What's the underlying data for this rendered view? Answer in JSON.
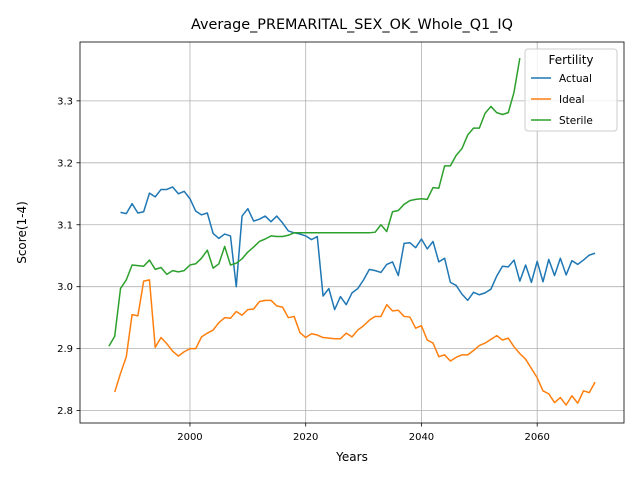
{
  "chart_data": {
    "type": "line",
    "title": "Average_PREMARITAL_SEX_OK_Whole_Q1_IQ",
    "xlabel": "Years",
    "ylabel": "Score(1-4)",
    "xlim": [
      1981,
      2075
    ],
    "ylim": [
      2.78,
      3.395
    ],
    "xticks": [
      2000,
      2020,
      2040,
      2060
    ],
    "yticks": [
      2.8,
      2.9,
      3.0,
      3.1,
      3.2,
      3.3
    ],
    "ytick_labels": [
      "2.8",
      "2.9",
      "3.0",
      "3.1",
      "3.2",
      "3.3"
    ],
    "grid": true,
    "legend": {
      "title": "Fertility",
      "position": "top-right"
    },
    "series": [
      {
        "name": "Actual",
        "color": "#1f77b4",
        "points": [
          [
            1988,
            3.12
          ],
          [
            1989,
            3.118
          ],
          [
            1990,
            3.134
          ],
          [
            1991,
            3.119
          ],
          [
            1992,
            3.121
          ],
          [
            1993,
            3.151
          ],
          [
            1994,
            3.145
          ],
          [
            1995,
            3.157
          ],
          [
            1996,
            3.157
          ],
          [
            1997,
            3.161
          ],
          [
            1998,
            3.15
          ],
          [
            1999,
            3.154
          ],
          [
            2000,
            3.142
          ],
          [
            2001,
            3.122
          ],
          [
            2002,
            3.116
          ],
          [
            2003,
            3.119
          ],
          [
            2004,
            3.086
          ],
          [
            2005,
            3.078
          ],
          [
            2006,
            3.085
          ],
          [
            2007,
            3.082
          ],
          [
            2008,
            3.0
          ],
          [
            2009,
            3.114
          ],
          [
            2010,
            3.126
          ],
          [
            2011,
            3.106
          ],
          [
            2012,
            3.109
          ],
          [
            2013,
            3.114
          ],
          [
            2014,
            3.105
          ],
          [
            2015,
            3.114
          ],
          [
            2016,
            3.103
          ],
          [
            2017,
            3.09
          ],
          [
            2018,
            3.087
          ],
          [
            2019,
            3.085
          ],
          [
            2020,
            3.082
          ],
          [
            2021,
            3.076
          ],
          [
            2022,
            3.081
          ],
          [
            2023,
            2.985
          ],
          [
            2024,
            2.997
          ],
          [
            2025,
            2.963
          ],
          [
            2026,
            2.984
          ],
          [
            2027,
            2.971
          ],
          [
            2028,
            2.99
          ],
          [
            2029,
            2.997
          ],
          [
            2030,
            3.011
          ],
          [
            2031,
            3.028
          ],
          [
            2032,
            3.026
          ],
          [
            2033,
            3.023
          ],
          [
            2034,
            3.036
          ],
          [
            2035,
            3.04
          ],
          [
            2036,
            3.018
          ],
          [
            2037,
            3.07
          ],
          [
            2038,
            3.071
          ],
          [
            2039,
            3.063
          ],
          [
            2040,
            3.077
          ],
          [
            2041,
            3.061
          ],
          [
            2042,
            3.073
          ],
          [
            2043,
            3.04
          ],
          [
            2044,
            3.046
          ],
          [
            2045,
            3.007
          ],
          [
            2046,
            3.002
          ],
          [
            2047,
            2.988
          ],
          [
            2048,
            2.978
          ],
          [
            2049,
            2.991
          ],
          [
            2050,
            2.987
          ],
          [
            2051,
            2.99
          ],
          [
            2052,
            2.996
          ],
          [
            2053,
            3.017
          ],
          [
            2054,
            3.033
          ],
          [
            2055,
            3.032
          ],
          [
            2056,
            3.043
          ],
          [
            2057,
            3.009
          ],
          [
            2058,
            3.035
          ],
          [
            2059,
            3.007
          ],
          [
            2060,
            3.041
          ],
          [
            2061,
            3.008
          ],
          [
            2062,
            3.044
          ],
          [
            2063,
            3.018
          ],
          [
            2064,
            3.046
          ],
          [
            2065,
            3.019
          ],
          [
            2066,
            3.042
          ],
          [
            2067,
            3.036
          ],
          [
            2068,
            3.043
          ],
          [
            2069,
            3.051
          ],
          [
            2070,
            3.054
          ]
        ]
      },
      {
        "name": "Ideal",
        "color": "#ff7f0e",
        "points": [
          [
            1987,
            2.83
          ],
          [
            1988,
            2.86
          ],
          [
            1989,
            2.887
          ],
          [
            1990,
            2.955
          ],
          [
            1991,
            2.953
          ],
          [
            1992,
            3.009
          ],
          [
            1993,
            3.011
          ],
          [
            1994,
            2.902
          ],
          [
            1995,
            2.918
          ],
          [
            1996,
            2.908
          ],
          [
            1997,
            2.896
          ],
          [
            1998,
            2.888
          ],
          [
            1999,
            2.895
          ],
          [
            2000,
            2.9
          ],
          [
            2001,
            2.9
          ],
          [
            2002,
            2.919
          ],
          [
            2003,
            2.925
          ],
          [
            2004,
            2.93
          ],
          [
            2005,
            2.942
          ],
          [
            2006,
            2.95
          ],
          [
            2007,
            2.949
          ],
          [
            2008,
            2.96
          ],
          [
            2009,
            2.954
          ],
          [
            2010,
            2.963
          ],
          [
            2011,
            2.964
          ],
          [
            2012,
            2.976
          ],
          [
            2013,
            2.978
          ],
          [
            2014,
            2.978
          ],
          [
            2015,
            2.969
          ],
          [
            2016,
            2.967
          ],
          [
            2017,
            2.95
          ],
          [
            2018,
            2.952
          ],
          [
            2019,
            2.926
          ],
          [
            2020,
            2.918
          ],
          [
            2021,
            2.924
          ],
          [
            2022,
            2.922
          ],
          [
            2023,
            2.918
          ],
          [
            2024,
            2.917
          ],
          [
            2025,
            2.916
          ],
          [
            2026,
            2.916
          ],
          [
            2027,
            2.925
          ],
          [
            2028,
            2.919
          ],
          [
            2029,
            2.93
          ],
          [
            2030,
            2.937
          ],
          [
            2031,
            2.946
          ],
          [
            2032,
            2.952
          ],
          [
            2033,
            2.952
          ],
          [
            2034,
            2.971
          ],
          [
            2035,
            2.961
          ],
          [
            2036,
            2.962
          ],
          [
            2037,
            2.952
          ],
          [
            2038,
            2.951
          ],
          [
            2039,
            2.933
          ],
          [
            2040,
            2.937
          ],
          [
            2041,
            2.914
          ],
          [
            2042,
            2.909
          ],
          [
            2043,
            2.887
          ],
          [
            2044,
            2.89
          ],
          [
            2045,
            2.88
          ],
          [
            2046,
            2.886
          ],
          [
            2047,
            2.89
          ],
          [
            2048,
            2.89
          ],
          [
            2049,
            2.897
          ],
          [
            2050,
            2.905
          ],
          [
            2051,
            2.909
          ],
          [
            2052,
            2.915
          ],
          [
            2053,
            2.921
          ],
          [
            2054,
            2.914
          ],
          [
            2055,
            2.917
          ],
          [
            2056,
            2.903
          ],
          [
            2057,
            2.892
          ],
          [
            2058,
            2.883
          ],
          [
            2059,
            2.868
          ],
          [
            2060,
            2.853
          ],
          [
            2061,
            2.832
          ],
          [
            2062,
            2.827
          ],
          [
            2063,
            2.813
          ],
          [
            2064,
            2.821
          ],
          [
            2065,
            2.809
          ],
          [
            2066,
            2.824
          ],
          [
            2067,
            2.812
          ],
          [
            2068,
            2.832
          ],
          [
            2069,
            2.829
          ],
          [
            2070,
            2.846
          ]
        ]
      },
      {
        "name": "Sterile",
        "color": "#2ca02c",
        "points": [
          [
            1986,
            2.904
          ],
          [
            1987,
            2.92
          ],
          [
            1988,
            2.997
          ],
          [
            1989,
            3.011
          ],
          [
            1990,
            3.035
          ],
          [
            1991,
            3.034
          ],
          [
            1992,
            3.033
          ],
          [
            1993,
            3.043
          ],
          [
            1994,
            3.028
          ],
          [
            1995,
            3.031
          ],
          [
            1996,
            3.02
          ],
          [
            1997,
            3.026
          ],
          [
            1998,
            3.024
          ],
          [
            1999,
            3.026
          ],
          [
            2000,
            3.035
          ],
          [
            2001,
            3.037
          ],
          [
            2002,
            3.046
          ],
          [
            2003,
            3.059
          ],
          [
            2004,
            3.03
          ],
          [
            2005,
            3.037
          ],
          [
            2006,
            3.065
          ],
          [
            2007,
            3.035
          ],
          [
            2008,
            3.038
          ],
          [
            2009,
            3.045
          ],
          [
            2010,
            3.056
          ],
          [
            2011,
            3.064
          ],
          [
            2012,
            3.073
          ],
          [
            2013,
            3.077
          ],
          [
            2014,
            3.082
          ],
          [
            2015,
            3.081
          ],
          [
            2016,
            3.081
          ],
          [
            2017,
            3.083
          ],
          [
            2018,
            3.087
          ],
          [
            2019,
            3.087
          ],
          [
            2020,
            3.087
          ],
          [
            2021,
            3.087
          ],
          [
            2022,
            3.087
          ],
          [
            2023,
            3.087
          ],
          [
            2024,
            3.087
          ],
          [
            2025,
            3.087
          ],
          [
            2026,
            3.087
          ],
          [
            2027,
            3.087
          ],
          [
            2028,
            3.087
          ],
          [
            2029,
            3.087
          ],
          [
            2030,
            3.087
          ],
          [
            2031,
            3.087
          ],
          [
            2032,
            3.088
          ],
          [
            2033,
            3.1
          ],
          [
            2034,
            3.089
          ],
          [
            2035,
            3.121
          ],
          [
            2036,
            3.123
          ],
          [
            2037,
            3.133
          ],
          [
            2038,
            3.139
          ],
          [
            2039,
            3.141
          ],
          [
            2040,
            3.142
          ],
          [
            2041,
            3.141
          ],
          [
            2042,
            3.16
          ],
          [
            2043,
            3.159
          ],
          [
            2044,
            3.195
          ],
          [
            2045,
            3.195
          ],
          [
            2046,
            3.212
          ],
          [
            2047,
            3.223
          ],
          [
            2048,
            3.245
          ],
          [
            2049,
            3.256
          ],
          [
            2050,
            3.256
          ],
          [
            2051,
            3.28
          ],
          [
            2052,
            3.291
          ],
          [
            2053,
            3.281
          ],
          [
            2054,
            3.278
          ],
          [
            2055,
            3.281
          ],
          [
            2056,
            3.314
          ],
          [
            2057,
            3.369
          ]
        ]
      }
    ]
  }
}
